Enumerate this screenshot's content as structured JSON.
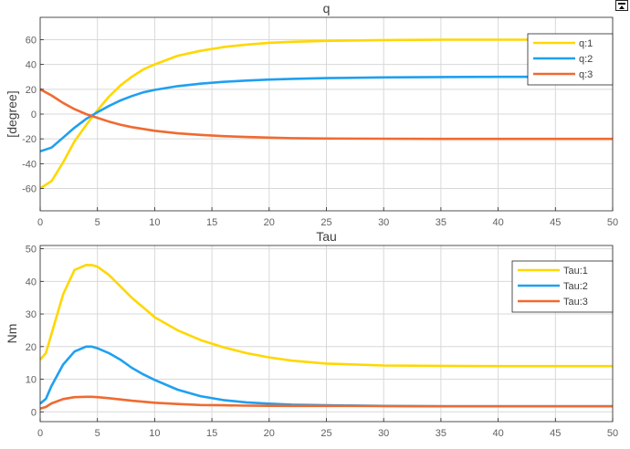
{
  "window": {
    "undock_icon": "undock-icon"
  },
  "chart_data": [
    {
      "type": "line",
      "title": "q",
      "xlabel": "",
      "ylabel": "[degree]",
      "xlim": [
        0,
        50
      ],
      "ylim": [
        -78,
        78
      ],
      "xticks": [
        0,
        5,
        10,
        15,
        20,
        25,
        30,
        35,
        40,
        45,
        50
      ],
      "yticks": [
        -60,
        -40,
        -20,
        0,
        20,
        40,
        60
      ],
      "grid": true,
      "legend_position": "top-right",
      "x": [
        0,
        1,
        2,
        3,
        4,
        5,
        6,
        7,
        8,
        9,
        10,
        12,
        14,
        16,
        18,
        20,
        22,
        25,
        30,
        35,
        40,
        45,
        50
      ],
      "series": [
        {
          "name": "q:1",
          "color": "#FFD700",
          "values": [
            -60,
            -54,
            -39,
            -22,
            -9,
            3,
            14,
            23,
            30,
            36,
            40,
            47,
            51,
            54,
            56,
            57.5,
            58.3,
            59,
            59.7,
            60,
            60,
            60,
            60
          ]
        },
        {
          "name": "q:2",
          "color": "#1FA0F0",
          "values": [
            -30,
            -27,
            -19,
            -11,
            -4,
            1.5,
            6.5,
            11,
            14.5,
            17.5,
            19.5,
            22.5,
            24.5,
            26,
            27,
            27.8,
            28.4,
            29,
            29.6,
            29.9,
            30,
            30,
            30
          ]
        },
        {
          "name": "q:3",
          "color": "#F06A30",
          "values": [
            20,
            15,
            9,
            4,
            0,
            -3,
            -6,
            -8.5,
            -10.5,
            -12,
            -13.5,
            -15.5,
            -16.8,
            -17.8,
            -18.5,
            -19,
            -19.4,
            -19.7,
            -19.9,
            -20,
            -20,
            -20,
            -20
          ]
        }
      ]
    },
    {
      "type": "line",
      "title": "Tau",
      "xlabel": "",
      "ylabel": "Nm",
      "xlim": [
        0,
        50
      ],
      "ylim": [
        -3,
        51
      ],
      "xticks": [
        0,
        5,
        10,
        15,
        20,
        25,
        30,
        35,
        40,
        45,
        50
      ],
      "yticks": [
        0,
        10,
        20,
        30,
        40,
        50
      ],
      "grid": true,
      "legend_position": "top-right",
      "x": [
        0,
        0.5,
        1,
        2,
        3,
        4,
        4.5,
        5,
        6,
        7,
        8,
        9,
        10,
        12,
        14,
        16,
        18,
        20,
        22,
        25,
        30,
        35,
        40,
        45,
        50
      ],
      "series": [
        {
          "name": "Tau:1",
          "color": "#FFD700",
          "values": [
            16,
            18,
            24,
            36,
            43.5,
            45,
            45,
            44.5,
            42,
            38.5,
            35,
            32,
            29,
            25,
            22,
            19.8,
            18,
            16.7,
            15.7,
            14.8,
            14.2,
            14.1,
            14,
            14,
            14
          ]
        },
        {
          "name": "Tau:2",
          "color": "#1FA0F0",
          "values": [
            2.5,
            4,
            8,
            14.5,
            18.5,
            20,
            20,
            19.5,
            18,
            16,
            13.5,
            11.5,
            9.8,
            6.8,
            4.8,
            3.6,
            2.9,
            2.5,
            2.2,
            2,
            1.8,
            1.7,
            1.7,
            1.7,
            1.7
          ]
        },
        {
          "name": "Tau:3",
          "color": "#F06A30",
          "values": [
            1,
            1.5,
            2.6,
            3.9,
            4.5,
            4.6,
            4.6,
            4.5,
            4.2,
            3.8,
            3.4,
            3.1,
            2.8,
            2.4,
            2.1,
            2,
            1.9,
            1.85,
            1.8,
            1.8,
            1.75,
            1.7,
            1.7,
            1.7,
            1.7
          ]
        }
      ]
    }
  ]
}
